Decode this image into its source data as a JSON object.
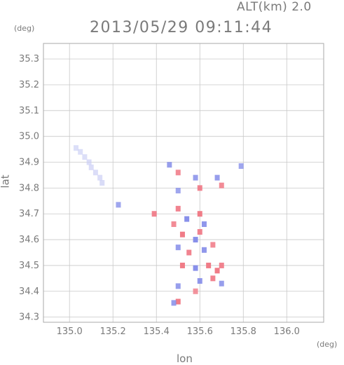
{
  "header": {
    "altitude_label": "ALT(km) 2.0",
    "timestamp": "2013/05/29 09:11:44",
    "y_unit": "(deg)",
    "x_unit": "(deg)"
  },
  "axes": {
    "xlabel": "lon",
    "ylabel": "lat",
    "x_ticks": [
      "135.0",
      "135.2",
      "135.4",
      "135.6",
      "135.8",
      "136.0"
    ],
    "y_ticks": [
      "34.3",
      "34.4",
      "34.5",
      "34.6",
      "34.7",
      "34.8",
      "34.9",
      "35.0",
      "35.1",
      "35.2",
      "35.3"
    ]
  },
  "chart_data": {
    "type": "heatmap",
    "title": "2013/05/29 09:11:44",
    "xlabel": "lon",
    "ylabel": "lat",
    "xlim": [
      134.88,
      136.17
    ],
    "ylim": [
      34.28,
      35.36
    ],
    "grid": true,
    "colors": {
      "positive": "#f07a86",
      "negative": "#7f88e8",
      "weak_negative": "#c8ccf4",
      "frame": "#aaaaaa"
    },
    "cells": [
      {
        "lon": 135.03,
        "lat": 34.955,
        "v": -0.3
      },
      {
        "lon": 135.05,
        "lat": 34.94,
        "v": -0.3
      },
      {
        "lon": 135.07,
        "lat": 34.92,
        "v": -0.3
      },
      {
        "lon": 135.09,
        "lat": 34.9,
        "v": -0.35
      },
      {
        "lon": 135.1,
        "lat": 34.88,
        "v": -0.35
      },
      {
        "lon": 135.12,
        "lat": 34.86,
        "v": -0.35
      },
      {
        "lon": 135.14,
        "lat": 34.84,
        "v": -0.35
      },
      {
        "lon": 135.15,
        "lat": 34.82,
        "v": -0.4
      },
      {
        "lon": 135.225,
        "lat": 34.735,
        "v": -0.5
      },
      {
        "lon": 135.39,
        "lat": 34.7,
        "v": 0.8
      },
      {
        "lon": 135.46,
        "lat": 34.89,
        "v": -0.6
      },
      {
        "lon": 135.5,
        "lat": 34.86,
        "v": 0.7
      },
      {
        "lon": 135.5,
        "lat": 34.79,
        "v": -0.5
      },
      {
        "lon": 135.58,
        "lat": 34.84,
        "v": -0.6
      },
      {
        "lon": 135.6,
        "lat": 34.8,
        "v": 0.8
      },
      {
        "lon": 135.68,
        "lat": 34.84,
        "v": -0.6
      },
      {
        "lon": 135.7,
        "lat": 34.81,
        "v": 0.7
      },
      {
        "lon": 135.79,
        "lat": 34.885,
        "v": -0.5
      },
      {
        "lon": 135.5,
        "lat": 34.72,
        "v": 0.8
      },
      {
        "lon": 135.54,
        "lat": 34.68,
        "v": -0.8
      },
      {
        "lon": 135.48,
        "lat": 34.66,
        "v": 0.7
      },
      {
        "lon": 135.6,
        "lat": 34.7,
        "v": 0.9
      },
      {
        "lon": 135.62,
        "lat": 34.66,
        "v": -0.7
      },
      {
        "lon": 135.52,
        "lat": 34.62,
        "v": 0.9
      },
      {
        "lon": 135.58,
        "lat": 34.6,
        "v": -0.8
      },
      {
        "lon": 135.6,
        "lat": 34.63,
        "v": 0.8
      },
      {
        "lon": 135.5,
        "lat": 34.57,
        "v": -0.6
      },
      {
        "lon": 135.55,
        "lat": 34.55,
        "v": 0.8
      },
      {
        "lon": 135.62,
        "lat": 34.56,
        "v": -0.7
      },
      {
        "lon": 135.66,
        "lat": 34.58,
        "v": 0.7
      },
      {
        "lon": 135.52,
        "lat": 34.5,
        "v": 0.9
      },
      {
        "lon": 135.58,
        "lat": 34.49,
        "v": -0.8
      },
      {
        "lon": 135.64,
        "lat": 34.5,
        "v": 0.9
      },
      {
        "lon": 135.68,
        "lat": 34.48,
        "v": 0.9
      },
      {
        "lon": 135.7,
        "lat": 34.5,
        "v": 0.8
      },
      {
        "lon": 135.6,
        "lat": 34.44,
        "v": -0.7
      },
      {
        "lon": 135.66,
        "lat": 34.45,
        "v": 0.8
      },
      {
        "lon": 135.7,
        "lat": 34.43,
        "v": -0.6
      },
      {
        "lon": 135.5,
        "lat": 34.42,
        "v": -0.6
      },
      {
        "lon": 135.58,
        "lat": 34.4,
        "v": 0.6
      },
      {
        "lon": 135.5,
        "lat": 34.36,
        "v": 0.9
      },
      {
        "lon": 135.48,
        "lat": 34.355,
        "v": -0.6
      }
    ]
  }
}
